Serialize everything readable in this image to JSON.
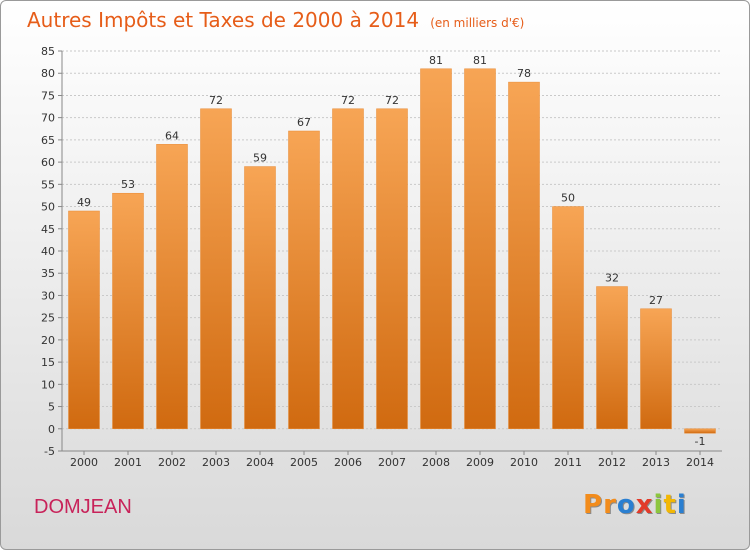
{
  "header": {
    "title": "Autres Impôts et Taxes de 2000 à 2014",
    "subtitle": "(en milliers d'€)"
  },
  "footer": {
    "town": "DOMJEAN",
    "logo": "Proxiti"
  },
  "logo_colors": [
    "#f28c1c",
    "#f28c1c",
    "#2a7fd1",
    "#e23b2a",
    "#8cc63f",
    "#f2b705",
    "#2a7fd1"
  ],
  "colors": {
    "bar_top": "#f7a555",
    "bar_bottom": "#d06a10",
    "title": "#e65d19",
    "town": "#c8235a"
  },
  "chart_data": {
    "type": "bar",
    "categories": [
      "2000",
      "2001",
      "2002",
      "2003",
      "2004",
      "2005",
      "2006",
      "2007",
      "2008",
      "2009",
      "2010",
      "2011",
      "2012",
      "2013",
      "2014"
    ],
    "values": [
      49,
      53,
      64,
      72,
      59,
      67,
      72,
      72,
      81,
      81,
      78,
      50,
      32,
      27,
      -1
    ],
    "title": "Autres Impôts et Taxes de 2000 à 2014",
    "subtitle": "(en milliers d'€)",
    "ylim": [
      -5,
      85
    ],
    "yticks": [
      -5,
      0,
      5,
      10,
      15,
      20,
      25,
      30,
      35,
      40,
      45,
      50,
      55,
      60,
      65,
      70,
      75,
      80,
      85
    ],
    "grid": true
  }
}
